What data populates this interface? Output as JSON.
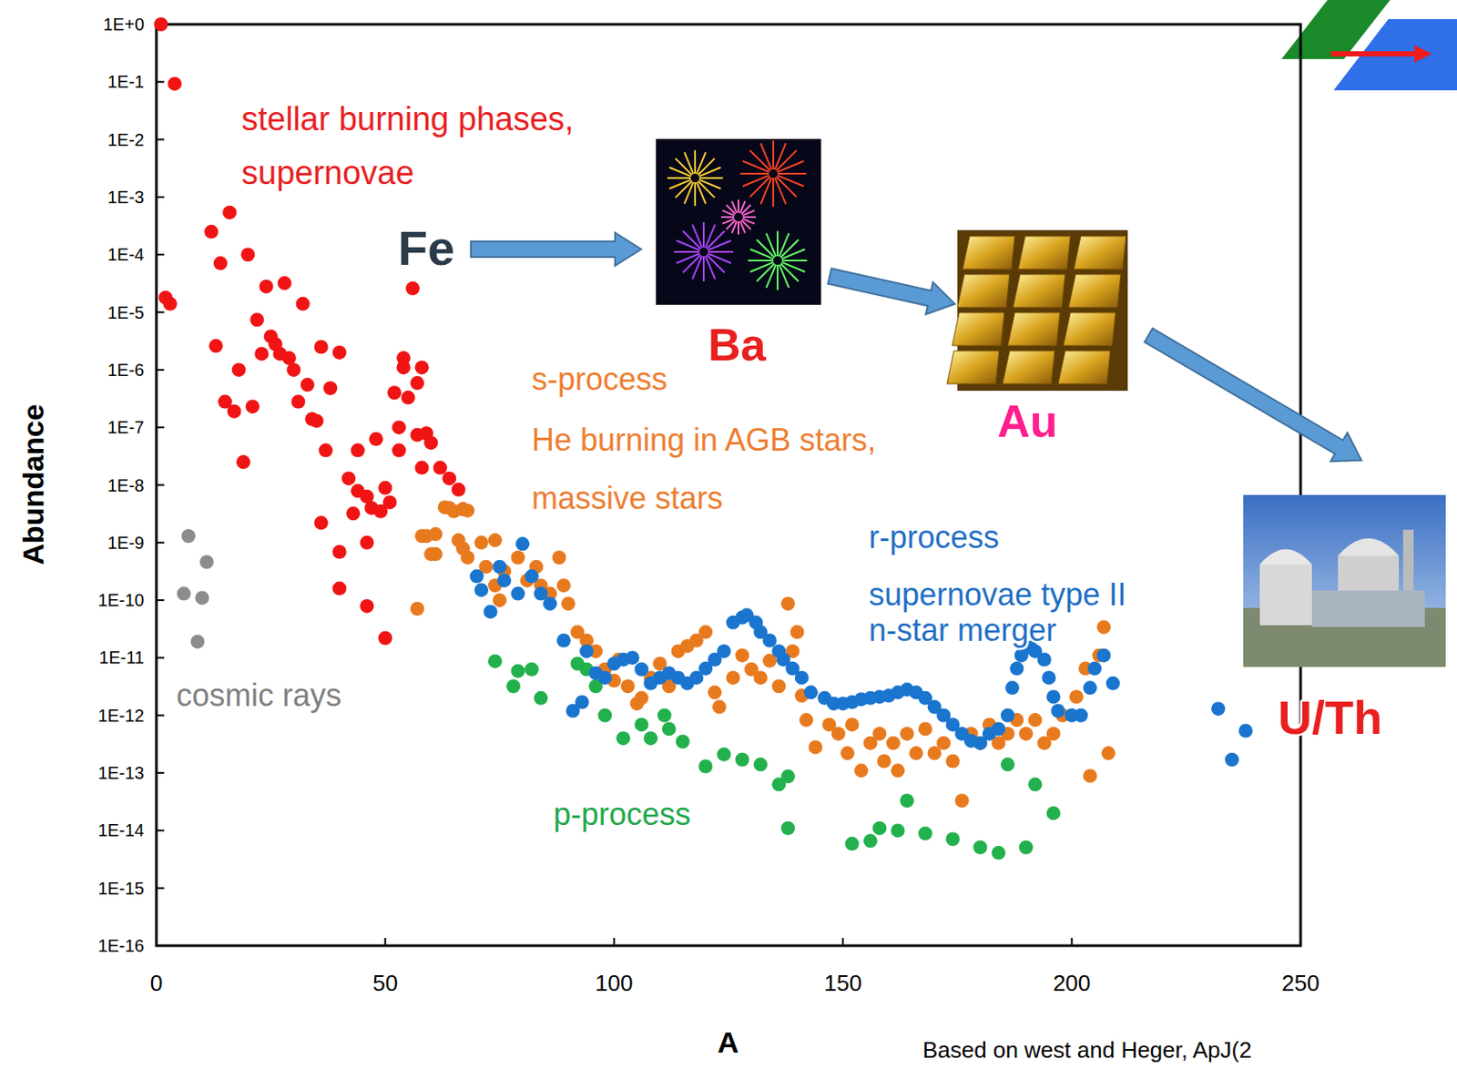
{
  "chart_data": {
    "type": "scatter",
    "log": "y",
    "grid": false,
    "x_label": "A",
    "y_label": "Abundance",
    "xlim": [
      0,
      250
    ],
    "ylim": [
      1e-16,
      1
    ],
    "xticks": [
      0,
      50,
      100,
      150,
      200,
      250
    ],
    "yticks": [
      {
        "value": 1,
        "label": "1E+0"
      },
      {
        "value": 0.1,
        "label": "1E-1"
      },
      {
        "value": 0.01,
        "label": "1E-2"
      },
      {
        "value": 0.001,
        "label": "1E-3"
      },
      {
        "value": 0.0001,
        "label": "1E-4"
      },
      {
        "value": 1e-05,
        "label": "1E-5"
      },
      {
        "value": 1e-06,
        "label": "1E-6"
      },
      {
        "value": 1e-07,
        "label": "1E-7"
      },
      {
        "value": 1e-08,
        "label": "1E-8"
      },
      {
        "value": 1e-09,
        "label": "1E-9"
      },
      {
        "value": 1e-10,
        "label": "1E-10"
      },
      {
        "value": 1e-11,
        "label": "1E-11"
      },
      {
        "value": 1e-12,
        "label": "1E-12"
      },
      {
        "value": 1e-13,
        "label": "1E-13"
      },
      {
        "value": 1e-14,
        "label": "1E-14"
      },
      {
        "value": 1e-15,
        "label": "1E-15"
      },
      {
        "value": 1e-16,
        "label": "1E-16"
      }
    ],
    "annotations": [
      "stellar burning phases,",
      "supernovae",
      "Fe",
      "Ba",
      "Au",
      "U/Th",
      "s-process",
      "He burning in AGB stars,",
      "massive stars",
      "r-process",
      "supernovae type II",
      "n-star merger",
      "cosmic rays",
      "p-process",
      "Based on west and Heger, ApJ(2"
    ],
    "series": [
      {
        "color": "#f01414",
        "marker": "circle",
        "x": [
          1,
          4,
          2,
          3,
          12,
          16,
          14,
          20,
          13,
          15,
          17,
          18,
          19,
          21,
          22,
          24,
          28,
          23,
          25,
          26,
          27,
          29,
          30,
          32,
          31,
          33,
          34,
          35,
          36,
          37,
          38,
          40,
          36,
          40,
          40,
          44,
          42,
          43,
          44,
          46,
          46,
          48,
          46,
          47,
          49,
          50,
          51,
          50,
          53,
          53,
          52,
          54,
          56,
          54,
          58,
          57,
          55,
          57,
          59,
          60,
          62,
          64,
          66,
          67,
          58
        ],
        "values": [
          1,
          0.093,
          1.8e-05,
          1.4e-05,
          0.00025,
          0.00054,
          7.1e-05,
          0.0001,
          2.6e-06,
          2.8e-07,
          1.9e-07,
          1e-06,
          2.5e-08,
          2.3e-07,
          7.4e-06,
          2.8e-05,
          3.2e-05,
          1.9e-06,
          3.8e-06,
          2.8e-06,
          1.9e-06,
          1.6e-06,
          1e-06,
          1.4e-05,
          2.8e-07,
          5.5e-07,
          1.4e-07,
          1.3e-07,
          2.5e-06,
          4e-08,
          4.8e-07,
          2e-06,
          2.2e-09,
          6.9e-10,
          1.6e-10,
          4e-08,
          1.3e-08,
          3.2e-09,
          7.9e-09,
          1e-09,
          7.9e-11,
          6.3e-08,
          6.3e-09,
          4e-09,
          3.5e-09,
          8.9e-09,
          5e-09,
          2.2e-11,
          4e-08,
          1e-07,
          4e-07,
          1.1e-06,
          2.6e-05,
          1.6e-06,
          1.1e-06,
          5.9e-07,
          3.3e-07,
          7.4e-08,
          7.9e-08,
          5.4e-08,
          2e-08,
          1.3e-08,
          8.3e-09,
          3.8e-09,
          2e-08
        ]
      },
      {
        "color": "#8c8c8c",
        "marker": "circle",
        "x": [
          7,
          11,
          6,
          10,
          9
        ],
        "values": [
          1.3e-09,
          4.6e-10,
          1.3e-10,
          1.1e-10,
          1.9e-11
        ]
      },
      {
        "color": "#22b14c",
        "marker": "circle",
        "x": [
          74,
          79,
          82,
          78,
          84,
          92,
          94,
          96,
          98,
          102,
          106,
          108,
          111,
          112,
          115,
          120,
          124,
          128,
          132,
          136,
          138,
          138,
          152,
          156,
          158,
          162,
          164,
          168,
          174,
          180,
          184,
          190,
          186,
          192,
          196
        ],
        "values": [
          8.7e-12,
          5.9e-12,
          6.3e-12,
          3.2e-12,
          2e-12,
          7.9e-12,
          6.3e-12,
          3.2e-12,
          1e-12,
          4e-13,
          6.9e-13,
          4e-13,
          1e-12,
          5.8e-13,
          3.5e-13,
          1.3e-13,
          2.1e-13,
          1.7e-13,
          1.4e-13,
          6.3e-14,
          8.7e-14,
          1.1e-14,
          5.9e-15,
          6.6e-15,
          1.1e-14,
          1e-14,
          3.3e-14,
          8.9e-15,
          7.1e-15,
          5.1e-15,
          4.1e-15,
          5.1e-15,
          1.4e-13,
          6.3e-14,
          2e-14
        ]
      },
      {
        "color": "#e87a1e",
        "marker": "circle",
        "x": [
          57,
          58,
          59,
          60,
          61,
          61,
          63,
          64,
          65,
          67,
          68,
          66,
          67,
          68,
          71,
          74,
          72,
          76,
          74,
          75,
          79,
          81,
          83,
          84,
          86,
          88,
          89,
          90,
          92,
          94,
          96,
          98,
          100,
          101,
          103,
          105,
          106,
          108,
          110,
          112,
          114,
          116,
          118,
          120,
          122,
          123,
          126,
          128,
          130,
          132,
          134,
          136,
          138,
          139,
          140,
          141,
          142,
          144,
          147,
          149,
          151,
          152,
          154,
          156,
          158,
          159,
          161,
          162,
          164,
          166,
          168,
          170,
          172,
          174,
          176,
          178,
          180,
          182,
          184,
          186,
          188,
          190,
          192,
          194,
          196,
          198,
          201,
          203,
          204,
          206,
          207,
          208
        ],
        "values": [
          7.1e-11,
          1.3e-09,
          1.3e-09,
          6.3e-10,
          1.4e-09,
          6.3e-10,
          4.1e-09,
          4e-09,
          3.5e-09,
          3.8e-09,
          3.6e-09,
          1.1e-09,
          7.9e-10,
          5.5e-10,
          1e-09,
          1.1e-09,
          3.8e-10,
          3.2e-10,
          1.8e-10,
          1e-10,
          5.5e-10,
          2.2e-10,
          3.8e-10,
          1.8e-10,
          1.3e-10,
          5.5e-10,
          1.8e-10,
          8.7e-11,
          2.8e-11,
          2e-11,
          1.3e-11,
          6.3e-12,
          4e-12,
          9.3e-12,
          3.2e-12,
          1.6e-12,
          2e-12,
          4.5e-12,
          7.9e-12,
          3.2e-12,
          1.3e-11,
          1.6e-11,
          2e-11,
          2.8e-11,
          2.5e-12,
          1.4e-12,
          4.5e-12,
          1.1e-11,
          6.3e-12,
          4.5e-12,
          8.9e-12,
          3.2e-12,
          8.7e-11,
          1.3e-11,
          2.8e-11,
          2.2e-12,
          8.3e-13,
          2.8e-13,
          6.9e-13,
          4.8e-13,
          2.2e-13,
          6.9e-13,
          1.1e-13,
          3.3e-13,
          4.8e-13,
          1.6e-13,
          3.3e-13,
          1.1e-13,
          4.8e-13,
          2.2e-13,
          5.8e-13,
          2.2e-13,
          3.3e-13,
          1.6e-13,
          3.3e-14,
          4.8e-13,
          3.3e-13,
          6.9e-13,
          3.3e-13,
          4.8e-13,
          8.3e-13,
          4.8e-13,
          8.3e-13,
          3.3e-13,
          4.8e-13,
          1e-12,
          2.1e-12,
          6.5e-12,
          8.9e-14,
          1.1e-11,
          3.4e-11,
          2.2e-13
        ]
      },
      {
        "color": "#1a75cf",
        "marker": "circle",
        "x": [
          70,
          71,
          73,
          75,
          76,
          79,
          80,
          82,
          84,
          86,
          89,
          91,
          93,
          94,
          96,
          98,
          100,
          102,
          104,
          106,
          108,
          110,
          112,
          114,
          116,
          118,
          120,
          122,
          124,
          126,
          128,
          129,
          131,
          132,
          134,
          136,
          137,
          139,
          141,
          143,
          146,
          148,
          150,
          152,
          154,
          156,
          158,
          160,
          162,
          164,
          166,
          168,
          170,
          172,
          174,
          176,
          178,
          180,
          182,
          184,
          186,
          187,
          188,
          189,
          191,
          192,
          194,
          195,
          196,
          197,
          200,
          202,
          204,
          205,
          207,
          209,
          232,
          235,
          238
        ],
        "values": [
          2.6e-10,
          1.5e-10,
          6.3e-11,
          3.8e-10,
          2.2e-10,
          1.3e-10,
          9.5e-10,
          2.6e-10,
          1.3e-10,
          8.7e-11,
          2e-11,
          1.2e-12,
          1.7e-12,
          1.3e-11,
          5.4e-12,
          4.5e-12,
          7.9e-12,
          9.3e-12,
          1e-11,
          6.3e-12,
          3.6e-12,
          4.5e-12,
          5.4e-12,
          4.5e-12,
          3.6e-12,
          4.5e-12,
          6.5e-12,
          9.3e-12,
          1.3e-11,
          4.1e-11,
          5e-11,
          5.5e-11,
          4.1e-11,
          2.8e-11,
          2e-11,
          1.3e-11,
          9.3e-12,
          6.5e-12,
          4.5e-12,
          2.5e-12,
          2e-12,
          1.6e-12,
          1.6e-12,
          1.7e-12,
          1.9e-12,
          2e-12,
          2.1e-12,
          2.2e-12,
          2.5e-12,
          2.8e-12,
          2.5e-12,
          2e-12,
          1.4e-12,
          1e-12,
          6.9e-13,
          4.8e-13,
          3.6e-13,
          3.3e-13,
          4.8e-13,
          5.8e-13,
          1e-12,
          3e-12,
          6.5e-12,
          1.1e-11,
          1.5e-11,
          1.3e-11,
          9.3e-12,
          4.5e-12,
          2.1e-12,
          1.2e-12,
          1e-12,
          1e-12,
          3e-12,
          6.5e-12,
          1.1e-11,
          3.6e-12,
          1.3e-12,
          1.7e-13,
          5.4e-13
        ]
      }
    ]
  }
}
